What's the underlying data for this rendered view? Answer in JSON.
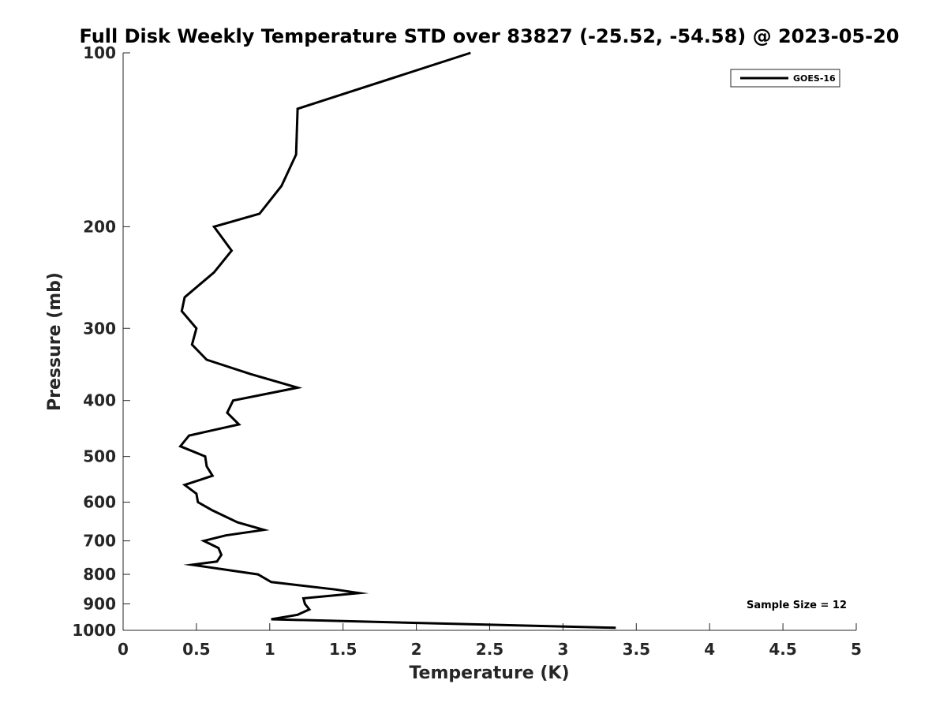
{
  "chart_data": {
    "type": "line",
    "title": "Full Disk Weekly Temperature STD over 83827 (-25.52, -54.58) @ 2023-05-20",
    "xlabel": "Temperature (K)",
    "ylabel": "Pressure (mb)",
    "xlim": [
      0,
      5
    ],
    "ylim": [
      1000,
      100
    ],
    "y_scale": "log",
    "x_ticks": [
      "0",
      "0.5",
      "1",
      "1.5",
      "2",
      "2.5",
      "3",
      "3.5",
      "4",
      "4.5",
      "5"
    ],
    "y_ticks": [
      "100",
      "200",
      "300",
      "400",
      "500",
      "600",
      "700",
      "800",
      "900",
      "1000"
    ],
    "grid": false,
    "legend": {
      "placement": "top-right",
      "entries": [
        "GOES-16"
      ]
    },
    "annotation": "Sample Size = 12",
    "series": [
      {
        "name": "GOES-16",
        "color": "#000000",
        "points": [
          [
            2.37,
            100
          ],
          [
            1.19,
            125
          ],
          [
            1.18,
            150
          ],
          [
            1.08,
            170
          ],
          [
            0.93,
            190
          ],
          [
            0.62,
            200
          ],
          [
            0.74,
            220
          ],
          [
            0.62,
            240
          ],
          [
            0.42,
            265
          ],
          [
            0.4,
            280
          ],
          [
            0.5,
            300
          ],
          [
            0.47,
            320
          ],
          [
            0.57,
            340
          ],
          [
            0.87,
            360
          ],
          [
            1.19,
            380
          ],
          [
            0.75,
            400
          ],
          [
            0.71,
            420
          ],
          [
            0.79,
            440
          ],
          [
            0.45,
            460
          ],
          [
            0.39,
            480
          ],
          [
            0.56,
            500
          ],
          [
            0.57,
            520
          ],
          [
            0.61,
            540
          ],
          [
            0.42,
            560
          ],
          [
            0.5,
            580
          ],
          [
            0.51,
            600
          ],
          [
            0.61,
            620
          ],
          [
            0.78,
            650
          ],
          [
            0.96,
            670
          ],
          [
            0.7,
            685
          ],
          [
            0.55,
            700
          ],
          [
            0.65,
            720
          ],
          [
            0.67,
            740
          ],
          [
            0.64,
            760
          ],
          [
            0.47,
            770
          ],
          [
            0.92,
            800
          ],
          [
            1.01,
            825
          ],
          [
            1.45,
            850
          ],
          [
            1.61,
            862
          ],
          [
            1.23,
            880
          ],
          [
            1.24,
            900
          ],
          [
            1.27,
            920
          ],
          [
            1.19,
            940
          ],
          [
            1.01,
            957
          ],
          [
            3.36,
            990
          ]
        ]
      }
    ]
  }
}
